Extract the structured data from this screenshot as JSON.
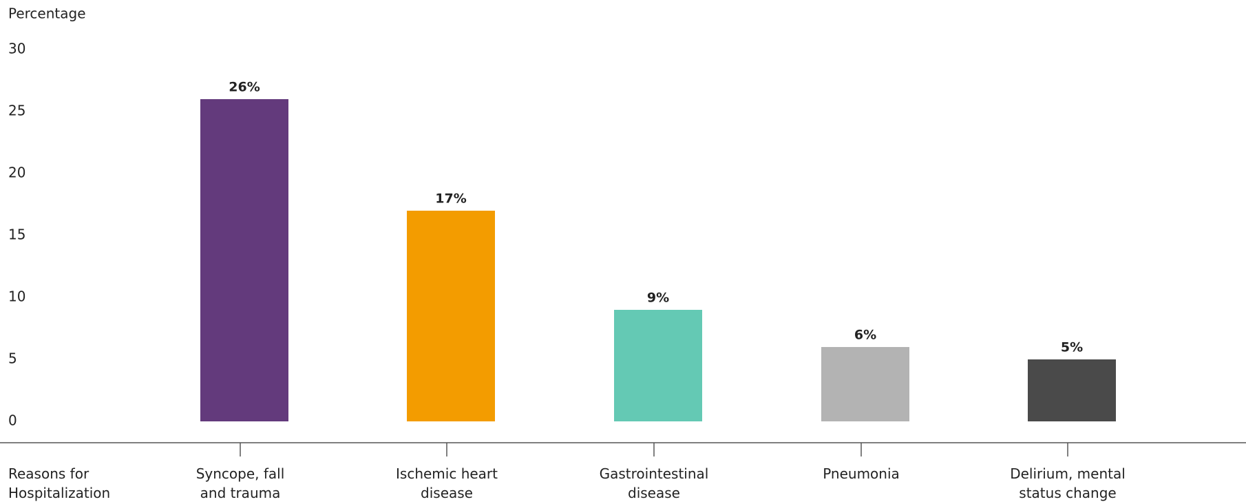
{
  "chart_data": {
    "type": "bar",
    "y_label": "Percentage",
    "x_label": "Reasons for\nHospitalization",
    "categories": [
      "Syncope, fall\nand trauma",
      "Ischemic heart\ndisease",
      "Gastrointestinal\ndisease",
      "Pneumonia",
      "Delirium, mental\nstatus change"
    ],
    "values": [
      26,
      17,
      9,
      6,
      5
    ],
    "value_labels": [
      "26%",
      "17%",
      "9%",
      "6%",
      "5%"
    ],
    "colors": [
      "#633a7c",
      "#f39c00",
      "#64c9b4",
      "#b3b3b3",
      "#4a4a4a"
    ],
    "ylim": [
      0,
      30
    ],
    "yticks": [
      0,
      5,
      10,
      15,
      20,
      25,
      30
    ],
    "grid": false
  }
}
